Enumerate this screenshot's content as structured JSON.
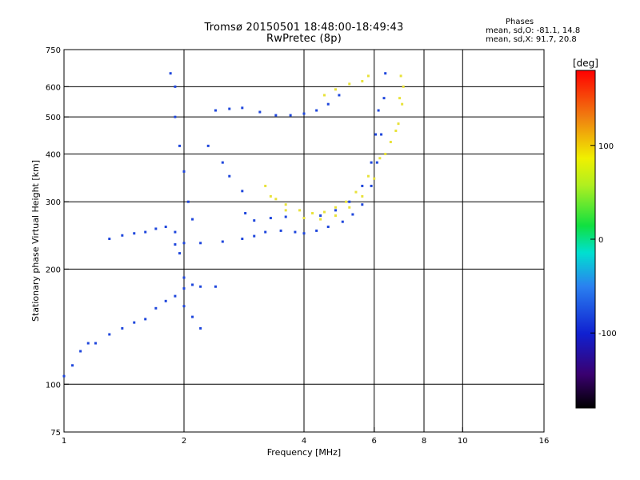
{
  "header": {
    "title_line1": "Tromsø 20150501 18:48:00-18:49:43",
    "title_line2": "RwPretec (8p)",
    "stats_title": "Phases",
    "stats_o": "mean, sd,O: -81.1, 14.8",
    "stats_x": "mean, sd,X:  91.7, 20.8"
  },
  "colors": {
    "grid": "#000000",
    "blue": "#1e46dc",
    "light_blue": "#2a8ee8",
    "yellow": "#e8e23a",
    "red": "#e83020"
  },
  "chart_data": {
    "type": "scatter",
    "title": "Tromsø 20150501 18:48:00-18:49:43",
    "subtitle": "RwPretec (8p)",
    "xlabel": "Frequency [MHz]",
    "ylabel": "Stationary phase Virtual Height [km]",
    "x_scale": "log",
    "y_scale": "log",
    "xlim": [
      1,
      16
    ],
    "ylim": [
      75,
      750
    ],
    "x_ticks": [
      1,
      2,
      4,
      6,
      8,
      10,
      16
    ],
    "x_tick_labels": [
      "1",
      "2",
      "4",
      "6",
      "8",
      "10",
      "16"
    ],
    "y_ticks": [
      75,
      100,
      200,
      300,
      400,
      500,
      600,
      750
    ],
    "y_tick_labels": [
      "75",
      "100",
      "200",
      "300",
      "400",
      "500",
      "600",
      "750"
    ],
    "grid": true,
    "colorbar": {
      "label": "[deg]",
      "ticks": [
        100,
        0,
        -100
      ],
      "tick_labels": [
        "100",
        "0",
        "-100"
      ],
      "range": [
        -180,
        180
      ]
    },
    "series": [
      {
        "name": "O",
        "color": "#1e46dc",
        "points": [
          [
            1.0,
            105
          ],
          [
            1.05,
            112
          ],
          [
            1.1,
            122
          ],
          [
            1.15,
            128
          ],
          [
            1.2,
            128
          ],
          [
            1.3,
            135
          ],
          [
            1.4,
            140
          ],
          [
            1.5,
            145
          ],
          [
            1.6,
            148
          ],
          [
            1.7,
            158
          ],
          [
            1.8,
            165
          ],
          [
            1.9,
            170
          ],
          [
            2.0,
            178
          ],
          [
            2.1,
            182
          ],
          [
            2.2,
            180
          ],
          [
            2.4,
            180
          ],
          [
            1.3,
            240
          ],
          [
            1.4,
            245
          ],
          [
            1.5,
            248
          ],
          [
            1.6,
            250
          ],
          [
            1.7,
            255
          ],
          [
            1.8,
            258
          ],
          [
            1.9,
            232
          ],
          [
            2.0,
            234
          ],
          [
            2.2,
            234
          ],
          [
            2.5,
            236
          ],
          [
            2.8,
            240
          ],
          [
            3.0,
            244
          ],
          [
            3.2,
            250
          ],
          [
            3.5,
            252
          ],
          [
            3.8,
            250
          ],
          [
            4.0,
            248
          ],
          [
            4.3,
            252
          ],
          [
            4.6,
            258
          ],
          [
            5.0,
            266
          ],
          [
            5.3,
            278
          ],
          [
            5.6,
            295
          ],
          [
            5.9,
            330
          ],
          [
            6.1,
            380
          ],
          [
            6.25,
            450
          ],
          [
            6.35,
            560
          ],
          [
            6.4,
            650
          ],
          [
            3.0,
            268
          ],
          [
            3.3,
            272
          ],
          [
            3.6,
            274
          ],
          [
            4.0,
            272
          ],
          [
            4.4,
            276
          ],
          [
            4.8,
            285
          ],
          [
            5.2,
            300
          ],
          [
            5.6,
            330
          ],
          [
            5.9,
            380
          ],
          [
            6.05,
            450
          ],
          [
            6.15,
            520
          ],
          [
            2.4,
            520
          ],
          [
            2.6,
            525
          ],
          [
            2.8,
            528
          ],
          [
            3.1,
            515
          ],
          [
            3.4,
            505
          ],
          [
            3.7,
            505
          ],
          [
            4.0,
            510
          ],
          [
            4.3,
            520
          ],
          [
            4.6,
            540
          ],
          [
            4.9,
            570
          ],
          [
            1.85,
            650
          ],
          [
            1.9,
            600
          ],
          [
            1.9,
            500
          ],
          [
            1.95,
            420
          ],
          [
            2.0,
            360
          ],
          [
            2.05,
            300
          ],
          [
            2.1,
            270
          ],
          [
            2.3,
            420
          ],
          [
            2.5,
            380
          ],
          [
            2.6,
            350
          ],
          [
            2.8,
            320
          ],
          [
            2.85,
            280
          ],
          [
            1.9,
            250
          ],
          [
            1.95,
            220
          ],
          [
            2.0,
            190
          ],
          [
            2.0,
            160
          ],
          [
            2.1,
            150
          ],
          [
            2.2,
            140
          ]
        ]
      },
      {
        "name": "X",
        "color": "#e8e23a",
        "points": [
          [
            3.2,
            330
          ],
          [
            3.4,
            305
          ],
          [
            3.6,
            295
          ],
          [
            3.9,
            285
          ],
          [
            4.2,
            280
          ],
          [
            4.5,
            282
          ],
          [
            4.8,
            290
          ],
          [
            5.1,
            300
          ],
          [
            5.4,
            318
          ],
          [
            5.8,
            350
          ],
          [
            6.2,
            390
          ],
          [
            6.6,
            430
          ],
          [
            6.9,
            480
          ],
          [
            7.05,
            540
          ],
          [
            7.1,
            600
          ],
          [
            7.0,
            640
          ],
          [
            3.3,
            310
          ],
          [
            3.6,
            285
          ],
          [
            4.0,
            272
          ],
          [
            4.4,
            270
          ],
          [
            4.8,
            276
          ],
          [
            5.2,
            290
          ],
          [
            5.6,
            310
          ],
          [
            6.0,
            345
          ],
          [
            6.4,
            400
          ],
          [
            6.8,
            460
          ],
          [
            6.95,
            560
          ],
          [
            4.5,
            570
          ],
          [
            4.8,
            590
          ],
          [
            5.2,
            610
          ],
          [
            5.6,
            620
          ],
          [
            5.8,
            640
          ]
        ]
      }
    ]
  }
}
